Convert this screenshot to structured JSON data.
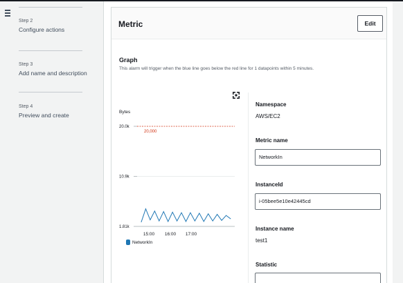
{
  "steps": [
    {
      "num": "Step 2",
      "name": "Configure actions"
    },
    {
      "num": "Step 3",
      "name": "Add name and description"
    },
    {
      "num": "Step 4",
      "name": "Preview and create"
    }
  ],
  "panel": {
    "title": "Metric",
    "edit_label": "Edit"
  },
  "graph": {
    "label": "Graph",
    "description": "This alarm will trigger when the blue line goes below the red line for 1 datapoints within 5 minutes."
  },
  "chart_data": {
    "type": "line",
    "ylabel": "Bytes",
    "yticks": [
      "20.0k",
      "10.9k",
      "1.81k"
    ],
    "ylim": [
      1810,
      20000
    ],
    "xticks": [
      "15:00",
      "16:00",
      "17:00"
    ],
    "threshold": {
      "value": 20000,
      "label": "20,000",
      "color": "#d13212"
    },
    "series": [
      {
        "name": "NetworkIn",
        "color": "#1f77b4",
        "values": [
          2600,
          5000,
          3000,
          4600,
          2800,
          4500,
          2700,
          4400,
          2800,
          4300,
          2700,
          4300,
          2800,
          4200,
          2700,
          4100,
          2800,
          4000,
          2900,
          3800,
          3200
        ]
      }
    ]
  },
  "fields": {
    "namespace_label": "Namespace",
    "namespace_value": "AWS/EC2",
    "metric_name_label": "Metric name",
    "metric_name_value": "NetworkIn",
    "instance_id_label": "InstanceId",
    "instance_id_value": "i-05bee5e10e42445cd",
    "instance_name_label": "Instance name",
    "instance_name_value": "test1",
    "statistic_label": "Statistic"
  },
  "colors": {
    "accent": "#1f77b4",
    "threshold": "#d13212"
  }
}
